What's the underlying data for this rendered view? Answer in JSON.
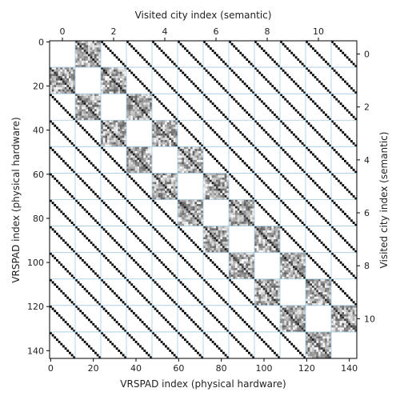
{
  "chart_data": {
    "type": "heatmap",
    "xlabel_bottom": "VRSPAD index (physical hardware)",
    "ylabel_left": "VRSPAD index (physical hardware)",
    "xlabel_top": "Visited city index (semantic)",
    "ylabel_right": "Visited city index (semantic)",
    "physical_range": [
      0,
      143
    ],
    "semantic_range": [
      -0.5,
      11.5
    ],
    "block_size": 12,
    "physical_ticks": [
      0,
      20,
      40,
      60,
      80,
      100,
      120,
      140
    ],
    "physical_tick_labels": [
      "0",
      "20",
      "40",
      "60",
      "80",
      "100",
      "120",
      "140"
    ],
    "semantic_ticks": [
      0,
      2,
      4,
      6,
      8,
      10
    ],
    "semantic_tick_labels": [
      "0",
      "2",
      "4",
      "6",
      "8",
      "10"
    ],
    "structure": {
      "diagonal_offsets_physical": [
        -132,
        -120,
        -108,
        -96,
        -84,
        -72,
        -60,
        -48,
        -36,
        -24,
        -12,
        0,
        12,
        24,
        36,
        48,
        60,
        72,
        84,
        96,
        108,
        120,
        132
      ],
      "noisy_gray_semantic_blocks": [
        [
          0,
          1
        ],
        [
          1,
          0
        ],
        [
          1,
          2
        ],
        [
          2,
          1
        ],
        [
          2,
          3
        ],
        [
          3,
          2
        ],
        [
          3,
          4
        ],
        [
          4,
          3
        ],
        [
          4,
          5
        ],
        [
          5,
          4
        ],
        [
          5,
          6
        ],
        [
          6,
          5
        ],
        [
          6,
          7
        ],
        [
          7,
          6
        ],
        [
          7,
          8
        ],
        [
          8,
          7
        ],
        [
          8,
          9
        ],
        [
          9,
          8
        ],
        [
          9,
          10
        ],
        [
          10,
          9
        ],
        [
          10,
          11
        ],
        [
          11,
          10
        ]
      ],
      "blank_diagonal_blocks": true
    },
    "grid": true,
    "grid_color": "#9ecae1",
    "cell_colors": [
      "#000000",
      "#ffffff",
      "#808080"
    ],
    "colormap": "grayscale"
  }
}
